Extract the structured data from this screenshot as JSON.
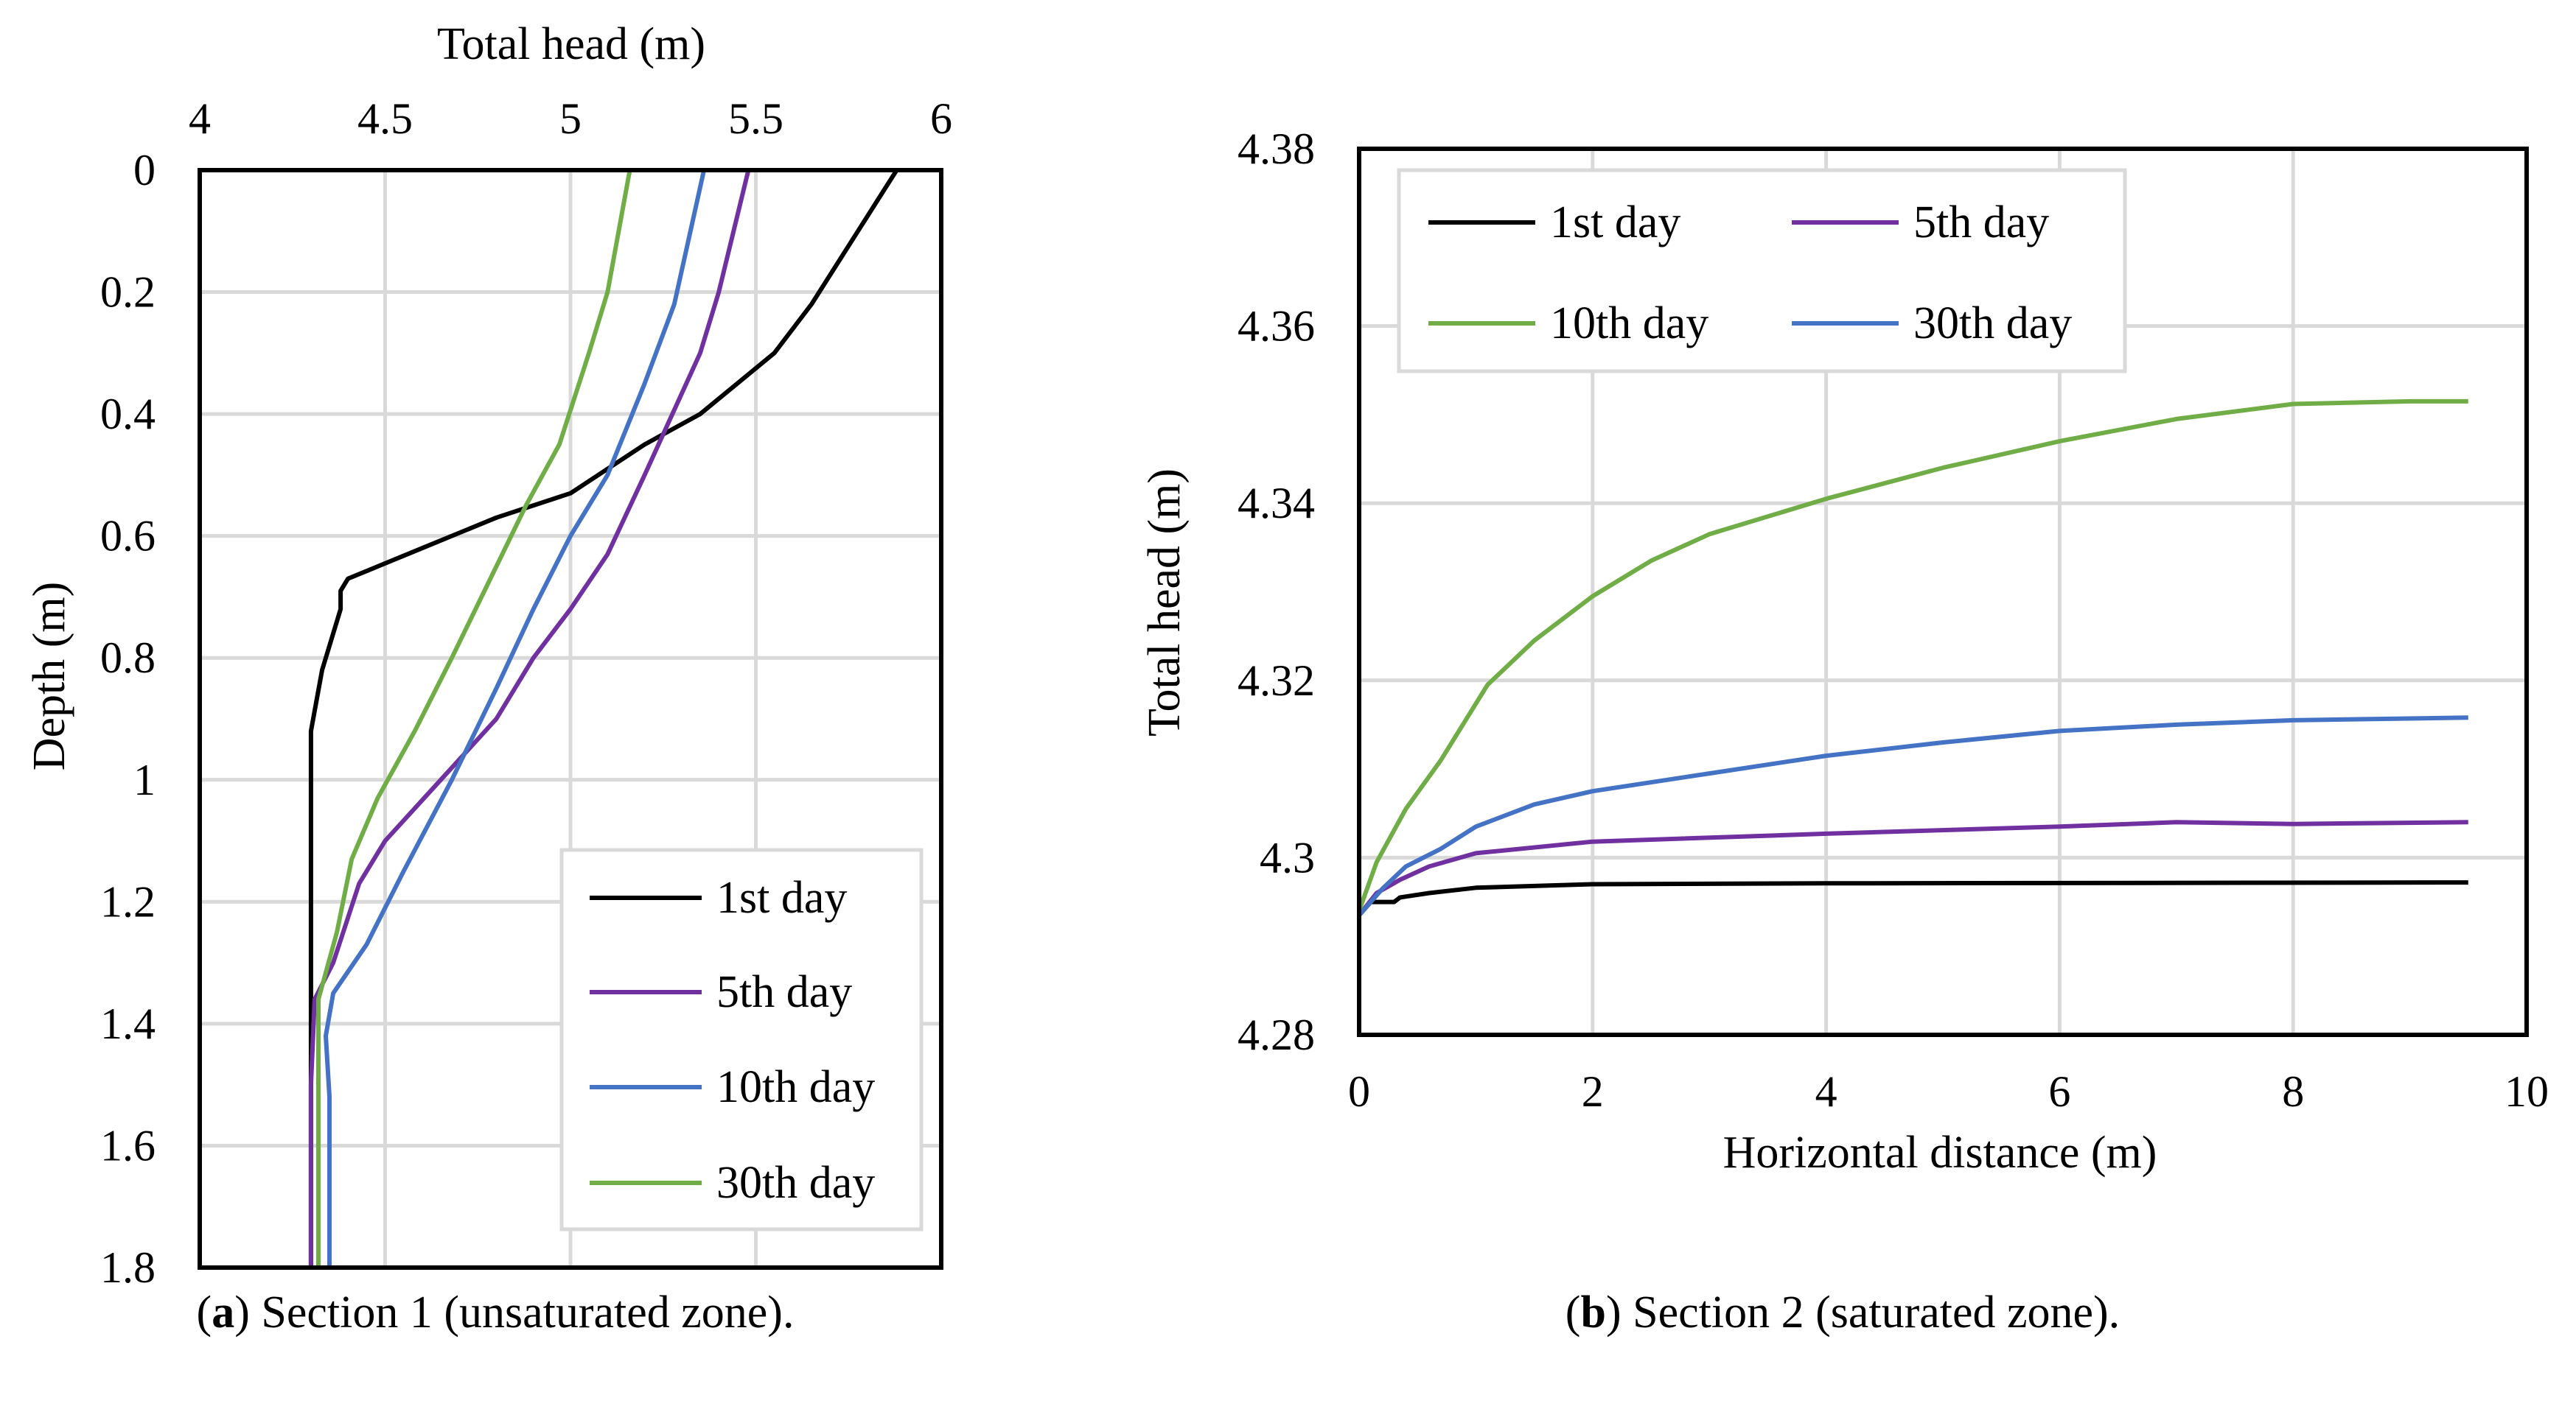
{
  "chart_data": [
    {
      "id": "a",
      "type": "line",
      "caption_label": "a",
      "caption_text": " Section 1 (unsaturated zone).",
      "xlabel": "Total head (m)",
      "ylabel": "Depth (m)",
      "xlim": [
        4,
        6
      ],
      "ylim": [
        0,
        1.8
      ],
      "y_inverted": true,
      "x_axis_position": "top",
      "xticks": [
        "4",
        "4.5",
        "5",
        "5.5",
        "6"
      ],
      "yticks": [
        "0",
        "0.2",
        "0.4",
        "0.6",
        "0.8",
        "1",
        "1.2",
        "1.4",
        "1.6",
        "1.8"
      ],
      "grid": true,
      "legend_position": "bottom-right",
      "series": [
        {
          "name": "1st day",
          "color": "#000000",
          "points": [
            [
              5.88,
              0
            ],
            [
              5.65,
              0.22
            ],
            [
              5.55,
              0.3
            ],
            [
              5.35,
              0.4
            ],
            [
              5.2,
              0.45
            ],
            [
              5.0,
              0.53
            ],
            [
              4.8,
              0.57
            ],
            [
              4.6,
              0.62
            ],
            [
              4.4,
              0.67
            ],
            [
              4.38,
              0.69
            ],
            [
              4.38,
              0.72
            ],
            [
              4.33,
              0.82
            ],
            [
              4.3,
              0.92
            ],
            [
              4.3,
              1.03
            ],
            [
              4.3,
              1.8
            ]
          ]
        },
        {
          "name": "5th day",
          "color": "#7030a0",
          "points": [
            [
              5.48,
              0
            ],
            [
              5.4,
              0.2
            ],
            [
              5.35,
              0.3
            ],
            [
              5.2,
              0.5
            ],
            [
              5.1,
              0.63
            ],
            [
              5.0,
              0.72
            ],
            [
              4.9,
              0.8
            ],
            [
              4.8,
              0.9
            ],
            [
              4.65,
              1.0
            ],
            [
              4.5,
              1.1
            ],
            [
              4.43,
              1.17
            ],
            [
              4.36,
              1.3
            ],
            [
              4.31,
              1.36
            ],
            [
              4.3,
              1.5
            ],
            [
              4.3,
              1.8
            ]
          ]
        },
        {
          "name": "10th day",
          "color": "#4472c4",
          "points": [
            [
              5.36,
              0
            ],
            [
              5.28,
              0.22
            ],
            [
              5.2,
              0.35
            ],
            [
              5.1,
              0.5
            ],
            [
              5.0,
              0.6
            ],
            [
              4.9,
              0.72
            ],
            [
              4.8,
              0.85
            ],
            [
              4.68,
              1.0
            ],
            [
              4.55,
              1.15
            ],
            [
              4.45,
              1.27
            ],
            [
              4.36,
              1.35
            ],
            [
              4.34,
              1.42
            ],
            [
              4.35,
              1.52
            ],
            [
              4.35,
              1.8
            ]
          ]
        },
        {
          "name": "30th day",
          "color": "#70ad47",
          "points": [
            [
              5.16,
              0
            ],
            [
              5.1,
              0.2
            ],
            [
              5.05,
              0.3
            ],
            [
              4.97,
              0.45
            ],
            [
              4.88,
              0.55
            ],
            [
              4.8,
              0.65
            ],
            [
              4.68,
              0.8
            ],
            [
              4.58,
              0.92
            ],
            [
              4.48,
              1.03
            ],
            [
              4.41,
              1.13
            ],
            [
              4.37,
              1.25
            ],
            [
              4.32,
              1.36
            ],
            [
              4.32,
              1.5
            ],
            [
              4.32,
              1.8
            ]
          ]
        }
      ]
    },
    {
      "id": "b",
      "type": "line",
      "caption_label": "b",
      "caption_text": " Section 2 (saturated zone).",
      "xlabel": "Horizontal distance (m)",
      "ylabel": "Total head (m)",
      "xlim": [
        0,
        10
      ],
      "ylim": [
        4.28,
        4.38
      ],
      "y_inverted": false,
      "x_axis_position": "bottom",
      "xticks": [
        "0",
        "2",
        "4",
        "6",
        "8",
        "10"
      ],
      "yticks": [
        "4.28",
        "4.3",
        "4.32",
        "4.34",
        "4.36",
        "4.38"
      ],
      "grid": true,
      "legend_position": "top-left",
      "series": [
        {
          "name": "1st day",
          "color": "#000000",
          "points": [
            [
              0,
              4.2935
            ],
            [
              0.1,
              4.295
            ],
            [
              0.3,
              4.295
            ],
            [
              0.35,
              4.2955
            ],
            [
              0.6,
              4.296
            ],
            [
              1,
              4.2966
            ],
            [
              2,
              4.297
            ],
            [
              4,
              4.2971
            ],
            [
              9.5,
              4.2972
            ]
          ]
        },
        {
          "name": "5th day",
          "color": "#7030a0",
          "points": [
            [
              0,
              4.2935
            ],
            [
              0.15,
              4.296
            ],
            [
              0.35,
              4.2975
            ],
            [
              0.6,
              4.299
            ],
            [
              1,
              4.3005
            ],
            [
              2,
              4.3018
            ],
            [
              4,
              4.3027
            ],
            [
              6,
              4.3035
            ],
            [
              7,
              4.304
            ],
            [
              8,
              4.3038
            ],
            [
              9.5,
              4.304
            ]
          ]
        },
        {
          "name": "10th day",
          "color": "#70ad47",
          "points": [
            [
              0,
              4.294
            ],
            [
              0.15,
              4.2995
            ],
            [
              0.4,
              4.3055
            ],
            [
              0.7,
              4.311
            ],
            [
              1.1,
              4.3195
            ],
            [
              1.5,
              4.3245
            ],
            [
              2,
              4.3295
            ],
            [
              2.5,
              4.3335
            ],
            [
              3,
              4.3365
            ],
            [
              4,
              4.3405
            ],
            [
              5,
              4.344
            ],
            [
              6,
              4.347
            ],
            [
              7,
              4.3495
            ],
            [
              8,
              4.3512
            ],
            [
              9,
              4.3515
            ],
            [
              9.5,
              4.3515
            ]
          ]
        },
        {
          "name": "30th day",
          "color": "#4472c4",
          "points": [
            [
              0,
              4.2935
            ],
            [
              0.2,
              4.2965
            ],
            [
              0.4,
              4.299
            ],
            [
              0.7,
              4.301
            ],
            [
              1,
              4.3035
            ],
            [
              1.5,
              4.306
            ],
            [
              2,
              4.3075
            ],
            [
              3,
              4.3095
            ],
            [
              4,
              4.3115
            ],
            [
              5,
              4.313
            ],
            [
              6,
              4.3143
            ],
            [
              7,
              4.315
            ],
            [
              8,
              4.3155
            ],
            [
              9.5,
              4.3158
            ]
          ]
        }
      ]
    }
  ]
}
